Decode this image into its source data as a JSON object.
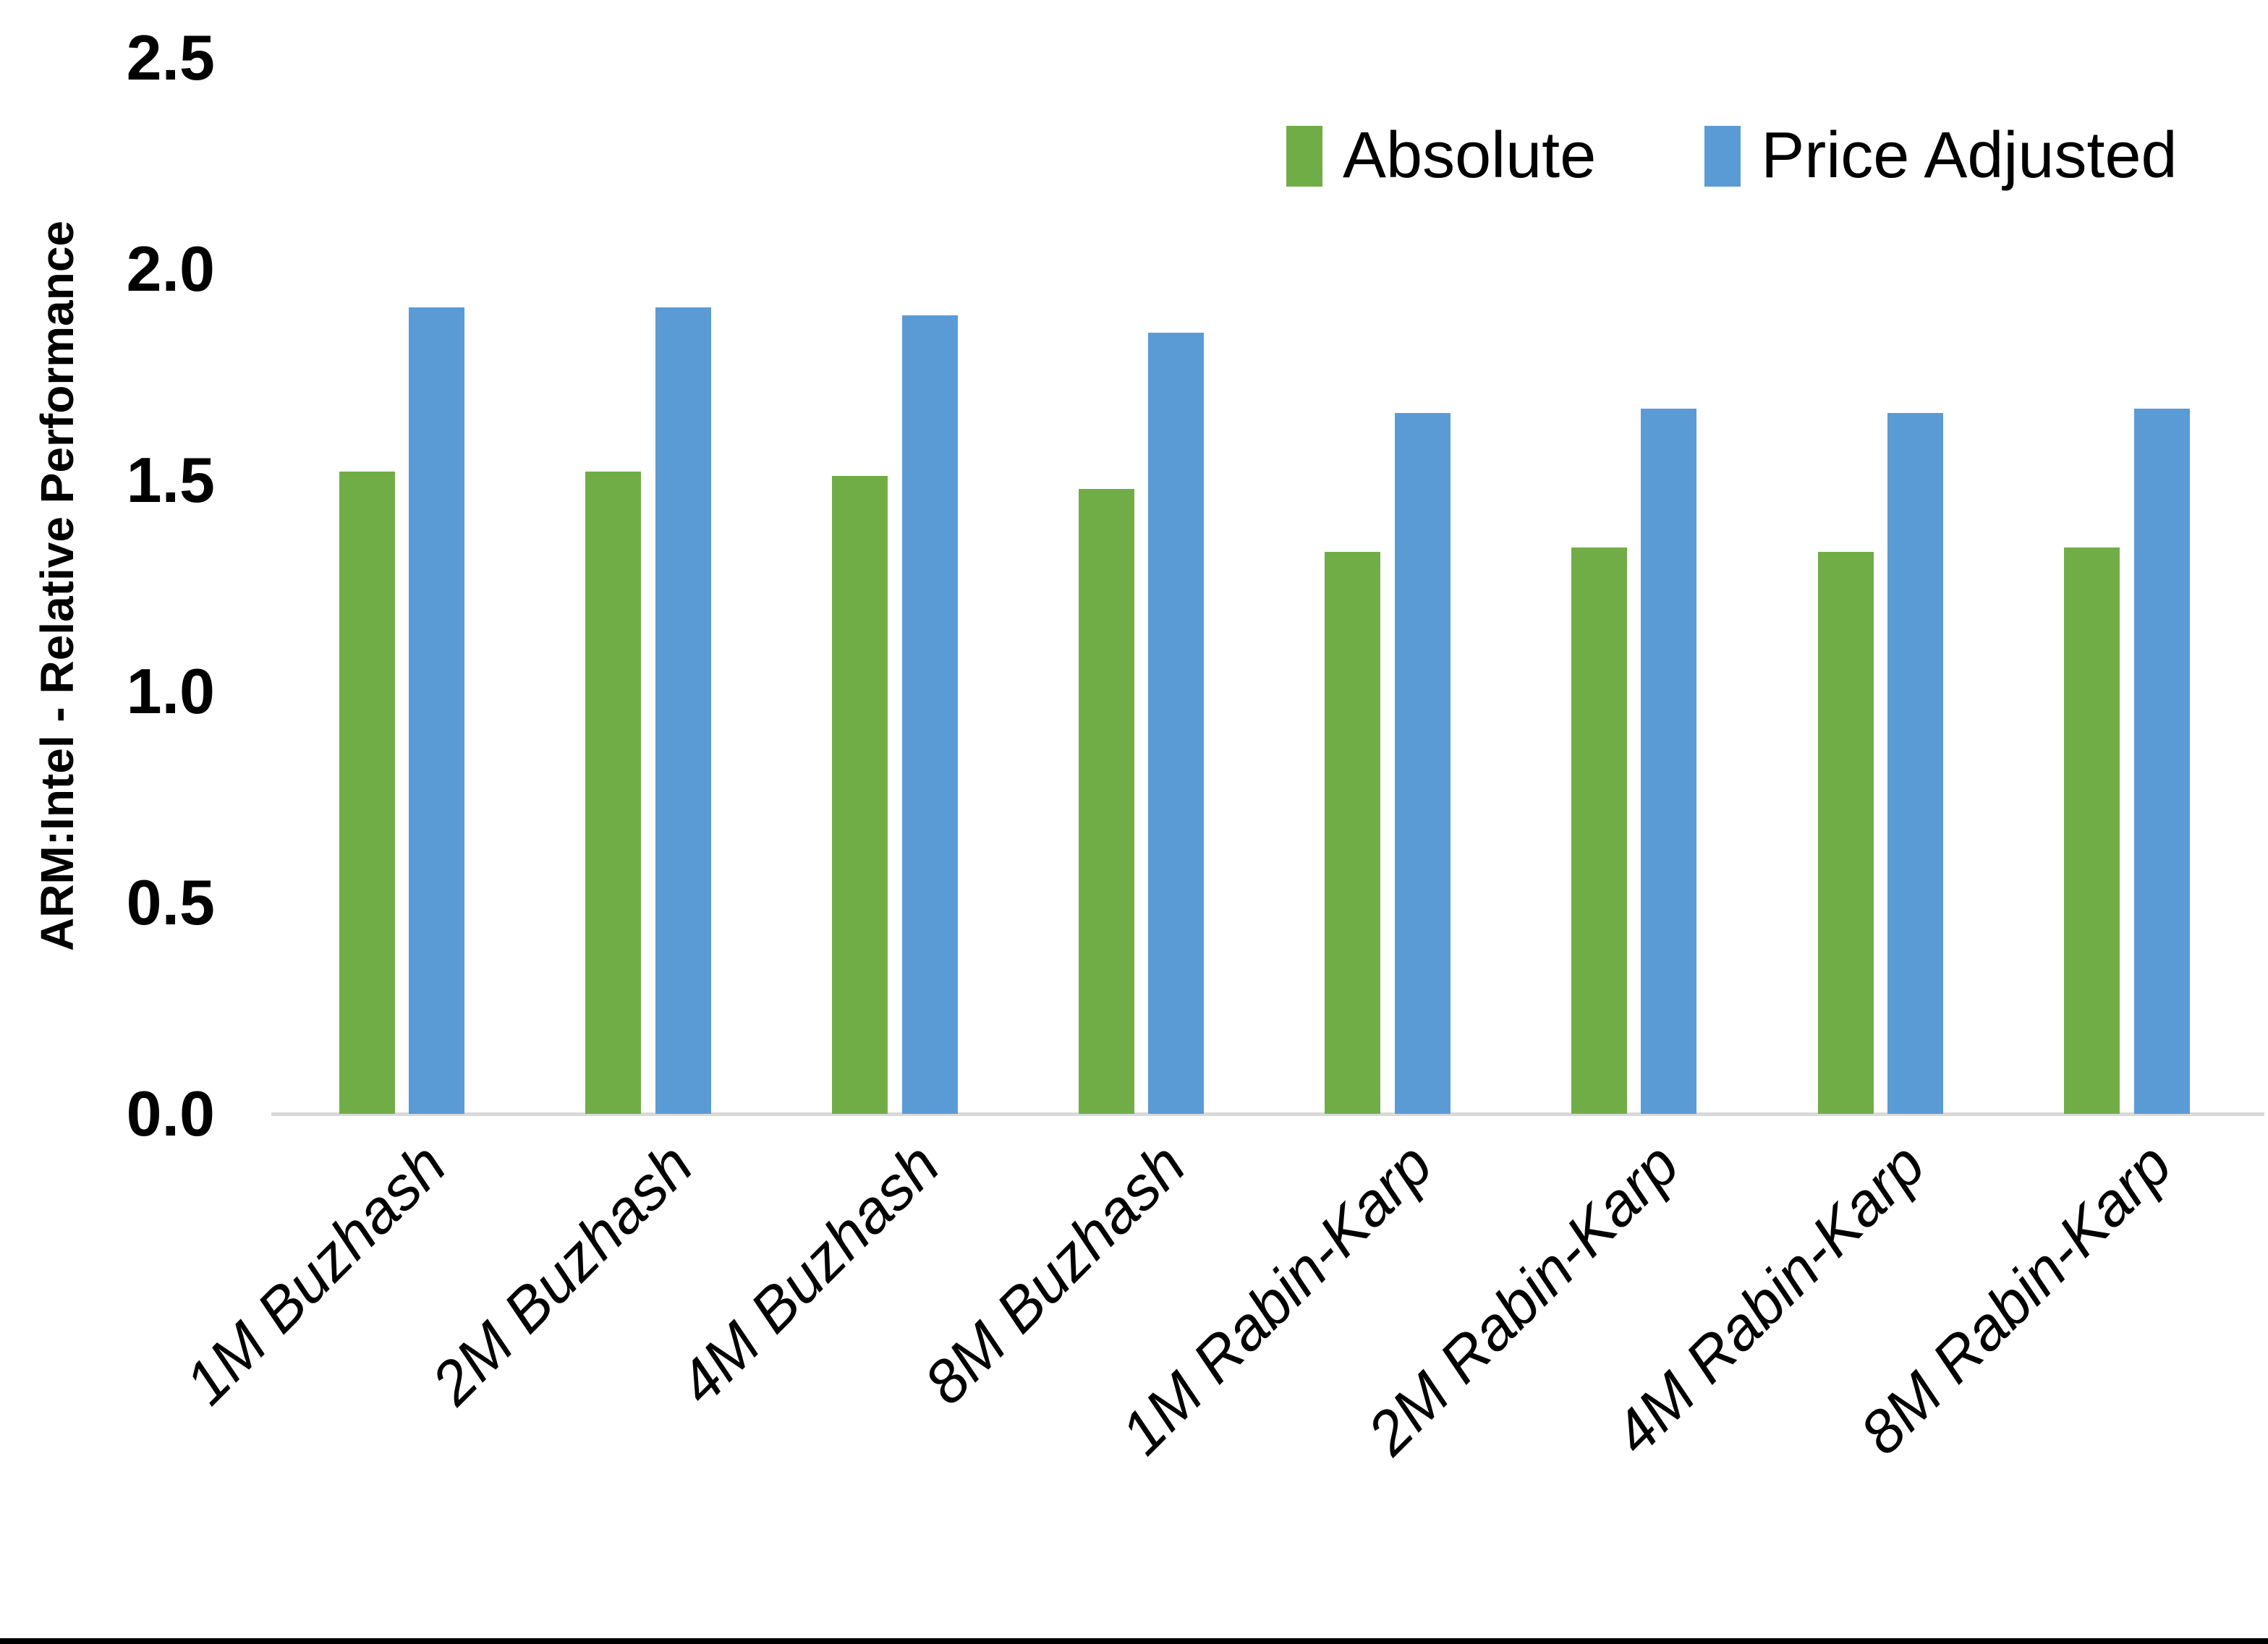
{
  "chart_data": {
    "type": "bar",
    "title": "",
    "xlabel": "",
    "ylabel": "ARM:Intel - Relative Performance",
    "ylim": [
      0,
      2.5
    ],
    "yticks": [
      "0.0",
      "0.5",
      "1.0",
      "1.5",
      "2.0",
      "2.5"
    ],
    "grid": false,
    "legend_position": "top-right-inside",
    "categories": [
      "1M Buzhash",
      "2M Buzhash",
      "4M Buzhash",
      "8M Buzhash",
      "1M Rabin-Karp",
      "2M Rabin-Karp",
      "4M Rabin-Karp",
      "8M Rabin-Karp"
    ],
    "series": [
      {
        "name": "Absolute",
        "color": "#70AD47",
        "values": [
          1.52,
          1.52,
          1.51,
          1.48,
          1.33,
          1.34,
          1.33,
          1.34
        ]
      },
      {
        "name": "Price Adjusted",
        "color": "#5B9BD5",
        "values": [
          1.91,
          1.91,
          1.89,
          1.85,
          1.66,
          1.67,
          1.66,
          1.67
        ]
      }
    ],
    "axis_color": "#D9D9D9",
    "bottom_edge_color": "#000000"
  }
}
